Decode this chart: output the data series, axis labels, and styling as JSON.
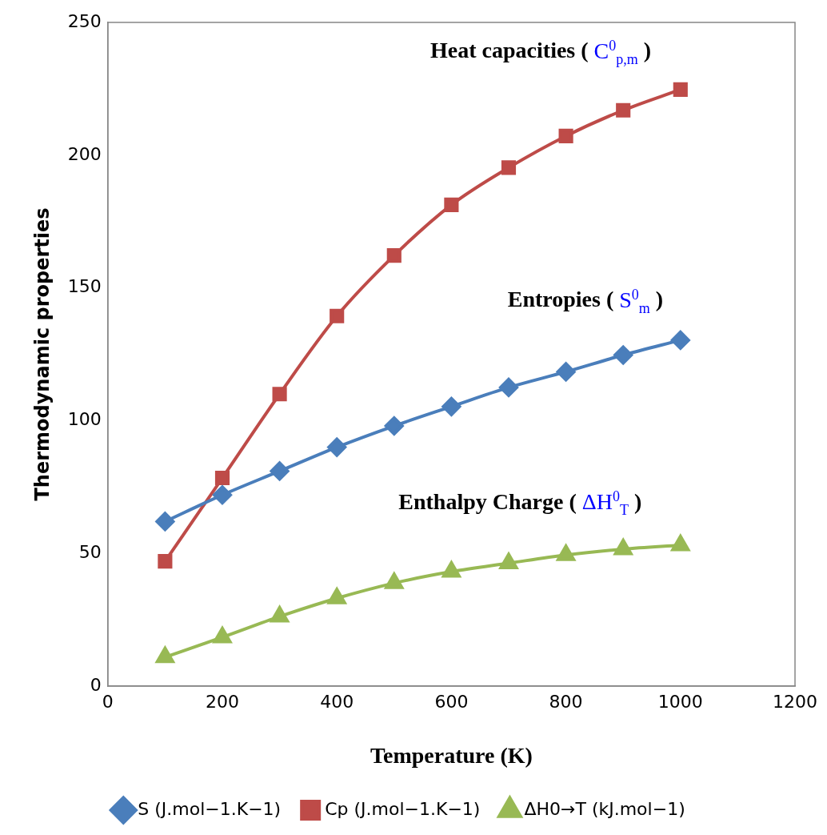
{
  "chart_data": {
    "type": "line",
    "xlabel": "Temperature (K)",
    "ylabel": "Thermodynamic properties",
    "x": [
      100,
      200,
      300,
      400,
      500,
      600,
      700,
      800,
      900,
      1000
    ],
    "series": [
      {
        "name": "S (J.mol−1.K−1)",
        "color": "#4a7ebb",
        "marker": "diamond",
        "values": [
          62,
          72,
          81,
          90,
          98,
          105.3,
          112.5,
          118.4,
          124.7,
          130.3
        ]
      },
      {
        "name": "Cp (J.mol−1.K−1)",
        "color": "#be4b48",
        "marker": "square",
        "values": [
          47,
          78.4,
          110,
          139.4,
          162.2,
          181.3,
          195.3,
          207.2,
          216.9,
          224.7
        ]
      },
      {
        "name": "ΔH0→T (kJ.mol−1)",
        "color": "#98b954",
        "marker": "triangle",
        "values": [
          10.9,
          18.4,
          26.2,
          33.1,
          38.8,
          43.1,
          46.3,
          49.4,
          51.6,
          53.1
        ]
      }
    ],
    "xlim": [
      0,
      1200
    ],
    "xticks": [
      0,
      200,
      400,
      600,
      800,
      1000,
      1200
    ],
    "ylim": [
      0,
      250
    ],
    "yticks": [
      0,
      50,
      100,
      150,
      200,
      250
    ],
    "grid": false,
    "legend": "bottom",
    "annotations": [
      "Heat capacities ( C$^{0}$$_{p,m}$ )",
      "Entropies ( S$^{0}$$_{m}$ )",
      "Enthalpy Charge ( ΔH$^{0}$$_{T}$ )"
    ]
  }
}
